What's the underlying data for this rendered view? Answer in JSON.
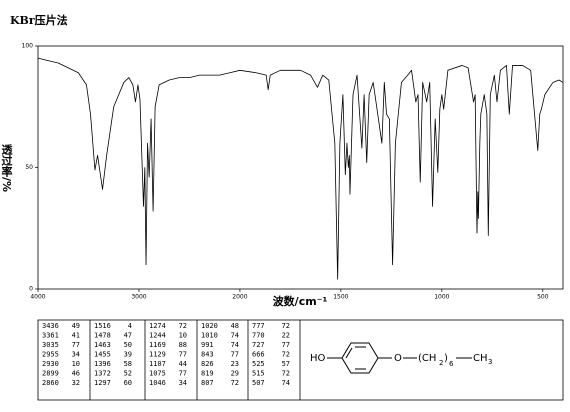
{
  "chart_data": {
    "type": "line",
    "title": "KBr压片法",
    "xlabel": "波数/cm⁻¹",
    "ylabel": "透过率/%",
    "x": [
      4000,
      3900,
      3800,
      3700,
      3600,
      3520,
      3480,
      3436,
      3410,
      3361,
      3320,
      3250,
      3150,
      3100,
      3060,
      3035,
      3010,
      2990,
      2955,
      2942,
      2930,
      2915,
      2899,
      2880,
      2860,
      2840,
      2800,
      2700,
      2600,
      2500,
      2400,
      2300,
      2200,
      2100,
      2000,
      1920,
      1870,
      1860,
      1850,
      1800,
      1700,
      1650,
      1616,
      1590,
      1560,
      1530,
      1516,
      1505,
      1490,
      1478,
      1470,
      1463,
      1458,
      1455,
      1440,
      1420,
      1396,
      1385,
      1372,
      1360,
      1340,
      1297,
      1285,
      1274,
      1260,
      1244,
      1230,
      1200,
      1180,
      1169,
      1150,
      1129,
      1118,
      1107,
      1095,
      1075,
      1060,
      1046,
      1033,
      1020,
      1010,
      1000,
      991,
      970,
      900,
      870,
      843,
      835,
      826,
      822,
      819,
      812,
      807,
      790,
      777,
      770,
      760,
      740,
      727,
      710,
      680,
      666,
      650,
      600,
      560,
      525,
      515,
      507,
      490,
      450,
      420,
      400
    ],
    "values": [
      95,
      94,
      93,
      91,
      89,
      84,
      72,
      49,
      55,
      41,
      55,
      75,
      85,
      87,
      84,
      77,
      84,
      78,
      34,
      50,
      10,
      60,
      46,
      70,
      32,
      75,
      84,
      86,
      87,
      87,
      88,
      88,
      88,
      89,
      90,
      89,
      88,
      82,
      88,
      90,
      90,
      88,
      83,
      88,
      86,
      60,
      4,
      60,
      80,
      47,
      60,
      50,
      55,
      39,
      80,
      88,
      58,
      80,
      52,
      80,
      85,
      60,
      85,
      72,
      70,
      10,
      60,
      85,
      87,
      88,
      90,
      77,
      80,
      44,
      85,
      77,
      85,
      34,
      70,
      48,
      74,
      80,
      74,
      90,
      92,
      91,
      77,
      80,
      23,
      40,
      29,
      60,
      72,
      80,
      72,
      22,
      80,
      88,
      77,
      90,
      92,
      72,
      92,
      92,
      90,
      57,
      72,
      74,
      80,
      85,
      86,
      85
    ],
    "color": "#000000",
    "xlim": [
      4000,
      400
    ],
    "ylim": [
      0,
      100
    ],
    "xticks": [
      4000,
      3000,
      2000,
      1500,
      1000,
      500
    ],
    "yticks": [
      0,
      50,
      100
    ],
    "grid": false
  },
  "peak_table": {
    "rows": [
      [
        3436,
        49
      ],
      [
        3361,
        41
      ],
      [
        3035,
        77
      ],
      [
        2955,
        34
      ],
      [
        2930,
        10
      ],
      [
        2899,
        46
      ],
      [
        2860,
        32
      ],
      [
        1516,
        4
      ],
      [
        1478,
        47
      ],
      [
        1463,
        50
      ],
      [
        1455,
        39
      ],
      [
        1396,
        58
      ],
      [
        1372,
        52
      ],
      [
        1297,
        60
      ],
      [
        1274,
        72
      ],
      [
        1244,
        10
      ],
      [
        1169,
        88
      ],
      [
        1129,
        77
      ],
      [
        1107,
        44
      ],
      [
        1075,
        77
      ],
      [
        1046,
        34
      ],
      [
        1020,
        48
      ],
      [
        1010,
        74
      ],
      [
        991,
        74
      ],
      [
        843,
        77
      ],
      [
        826,
        23
      ],
      [
        819,
        29
      ],
      [
        807,
        72
      ],
      [
        777,
        72
      ],
      [
        770,
        22
      ],
      [
        727,
        77
      ],
      [
        666,
        72
      ],
      [
        525,
        57
      ],
      [
        515,
        72
      ],
      [
        507,
        74
      ]
    ]
  },
  "structure": {
    "hydroxyl": "HO",
    "ether": "O",
    "chain_open": "(CH",
    "chain_sub": "2",
    "chain_close": ")",
    "repeat": "6",
    "end_group": "CH",
    "end_sub": "3"
  }
}
